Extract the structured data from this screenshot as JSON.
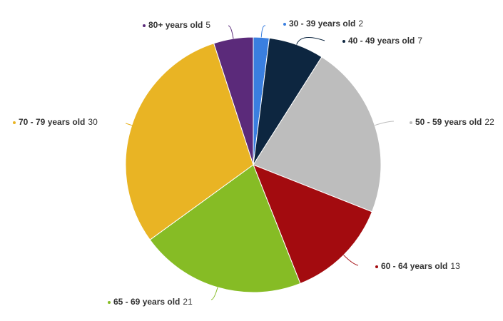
{
  "chart_data": {
    "type": "pie",
    "categories": [
      "30 - 39 years old",
      "40 - 49 years old",
      "50 - 59 years old",
      "60 - 64 years old",
      "65 - 69 years old",
      "70 - 79 years old",
      "80+ years old"
    ],
    "values": [
      2,
      7,
      22,
      13,
      21,
      30,
      5
    ],
    "colors": [
      "#3a7fe0",
      "#0d2640",
      "#bdbdbd",
      "#a30b0f",
      "#86bc25",
      "#e9b424",
      "#5b2a7a"
    ]
  }
}
